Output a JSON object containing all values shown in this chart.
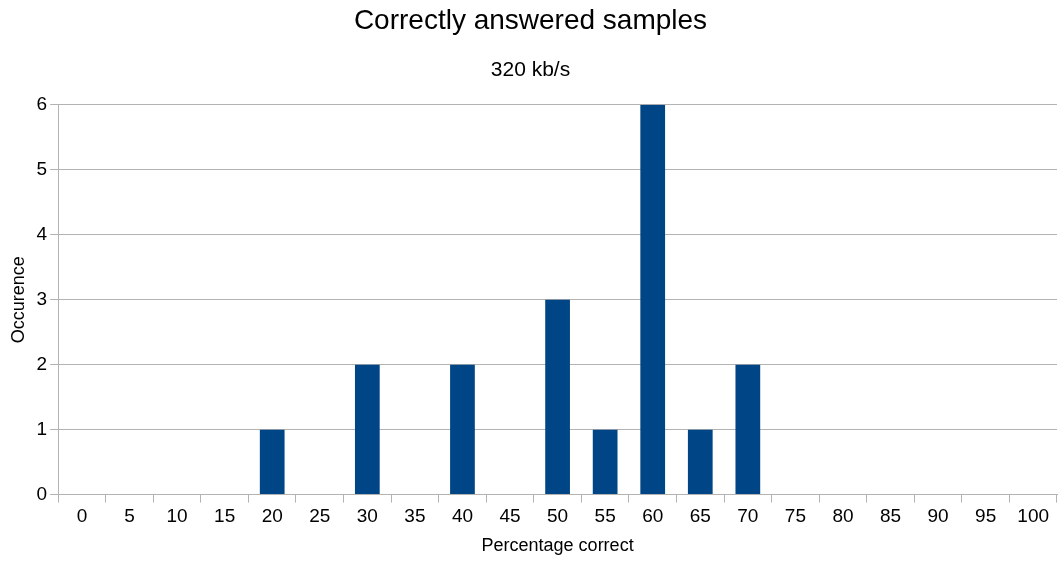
{
  "chart_data": {
    "type": "bar",
    "title": "Correctly answered samples",
    "subtitle": "320 kb/s",
    "xlabel": "Percentage correct",
    "ylabel": "Occurence",
    "categories": [
      "0",
      "5",
      "10",
      "15",
      "20",
      "25",
      "30",
      "35",
      "40",
      "45",
      "50",
      "55",
      "60",
      "65",
      "70",
      "75",
      "80",
      "85",
      "90",
      "95",
      "100"
    ],
    "values": [
      0,
      0,
      0,
      0,
      1,
      0,
      2,
      0,
      2,
      0,
      3,
      1,
      6,
      1,
      2,
      0,
      0,
      0,
      0,
      0,
      0
    ],
    "color": "#004586",
    "ylim": [
      0,
      6
    ],
    "yticks": [
      0,
      1,
      2,
      3,
      4,
      5,
      6
    ],
    "grid": "y"
  }
}
